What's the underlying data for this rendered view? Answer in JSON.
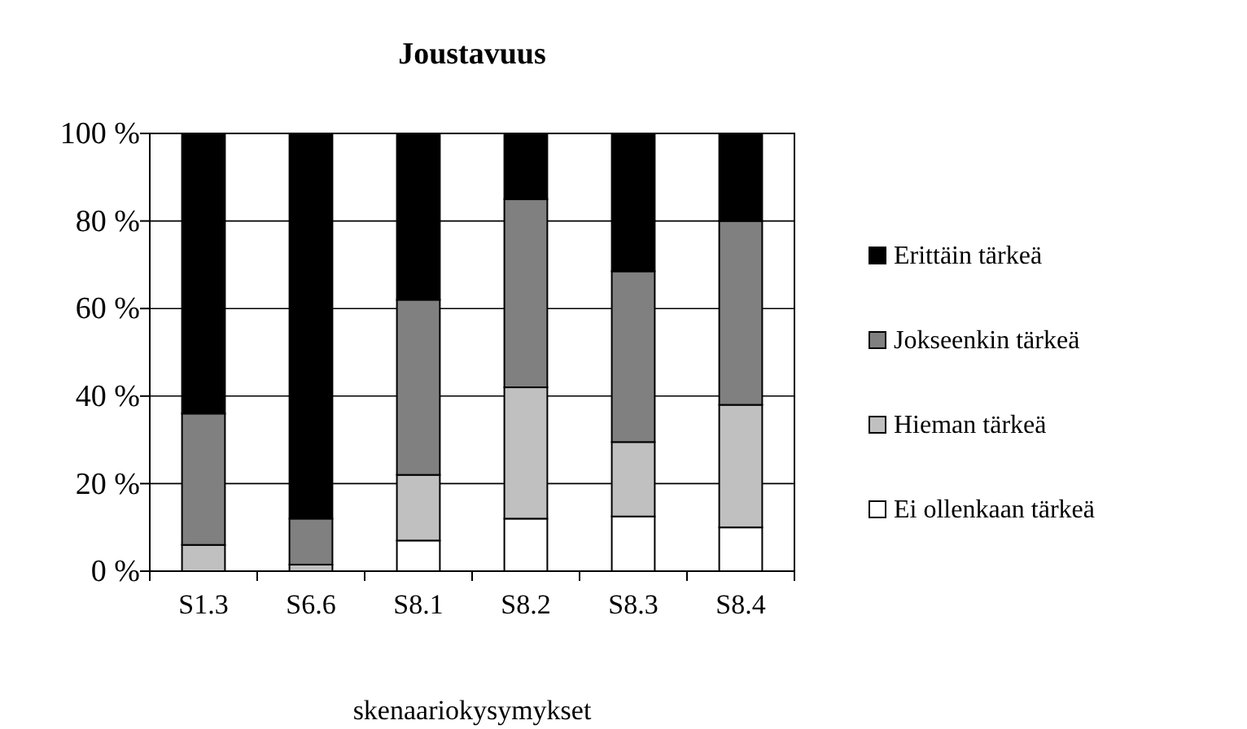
{
  "chart_data": {
    "type": "bar",
    "title": "Joustavuus",
    "xlabel": "skenaariokysymykset",
    "categories": [
      "S1.3",
      "S6.6",
      "S8.1",
      "S8.2",
      "S8.3",
      "S8.4"
    ],
    "stacked": true,
    "series": [
      {
        "name": "Ei ollenkaan tärkeä",
        "color": "#ffffff",
        "values": [
          0,
          0,
          7,
          12,
          12.5,
          10
        ]
      },
      {
        "name": "Hieman tärkeä",
        "color": "#c0c0c0",
        "values": [
          6,
          1.5,
          15,
          30,
          17,
          28
        ]
      },
      {
        "name": "Jokseenkin tärkeä",
        "color": "#808080",
        "values": [
          30,
          10.5,
          40,
          43,
          39,
          42
        ]
      },
      {
        "name": "Erittäin tärkeä",
        "color": "#000000",
        "values": [
          64,
          88,
          38,
          15,
          31.5,
          20
        ]
      }
    ],
    "ylim": [
      0,
      100
    ],
    "yticks": [
      {
        "value": 0,
        "label": "0 %"
      },
      {
        "value": 20,
        "label": "20 %"
      },
      {
        "value": 40,
        "label": "40 %"
      },
      {
        "value": 60,
        "label": "60 %"
      },
      {
        "value": 80,
        "label": "80 %"
      },
      {
        "value": 100,
        "label": "100 %"
      }
    ],
    "grid": "y",
    "legend": "right"
  }
}
